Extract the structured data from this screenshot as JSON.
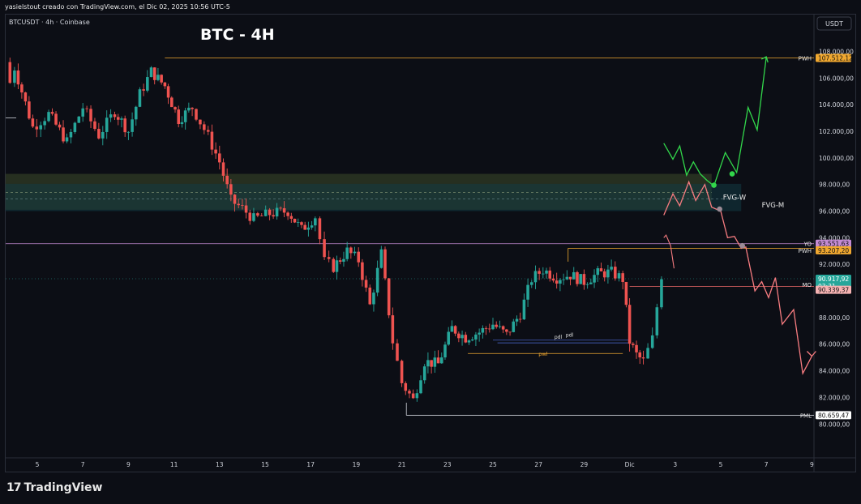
{
  "header": {
    "attribution": "yasielstout creado con TradingView.com, el Dic 02, 2025 10:56 UTC-5",
    "symbol": "BTCUSDT · 4h · Coinbase",
    "title": "BTC - 4H",
    "currency": "USDT"
  },
  "footer": {
    "brand_logo": "17",
    "brand_text": "TradingView"
  },
  "colors": {
    "background": "#0c0e15",
    "up": "#26a69a",
    "down": "#ef5350",
    "projection_up": "#32d74b",
    "projection_down": "#f77c80",
    "pwh": "#f0a830",
    "yo": "#c48bd4",
    "zone": "#2d4a3a"
  },
  "chart_data": {
    "type": "candlestick",
    "ylim": [
      79000,
      109500
    ],
    "y_ticks": [
      "108.000,00",
      "106.000,00",
      "104.000,00",
      "102.000,00",
      "100.000,00",
      "98.000,00",
      "96.000,00",
      "94.000,00",
      "92.000,00",
      "90.000,00",
      "88.000,00",
      "86.000,00",
      "84.000,00",
      "82.000,00",
      "80.000,00"
    ],
    "y_tick_values": [
      108000,
      106000,
      104000,
      102000,
      100000,
      98000,
      96000,
      94000,
      92000,
      90000,
      88000,
      86000,
      84000,
      82000,
      80000
    ],
    "x_ticks": [
      "5",
      "7",
      "9",
      "11",
      "13",
      "15",
      "17",
      "19",
      "21",
      "23",
      "25",
      "27",
      "29",
      "Dic",
      "3",
      "5",
      "7",
      "9"
    ],
    "x_tick_days": [
      5,
      7,
      9,
      11,
      13,
      15,
      17,
      19,
      21,
      23,
      25,
      27,
      29,
      31,
      33,
      35,
      37,
      39
    ],
    "x_range_days": [
      3.6,
      39.6
    ],
    "price_path": {
      "days": [
        3.6,
        4.0,
        4.8,
        5.5,
        6.3,
        7.0,
        7.7,
        8.4,
        9.0,
        9.5,
        10.0,
        10.6,
        11.2,
        11.8,
        12.5,
        13.0,
        13.5,
        14.0,
        14.5,
        15.2,
        16.0,
        16.6,
        17.2,
        17.6,
        18.0,
        18.6,
        19.1,
        19.6,
        20.1,
        20.6,
        21.0,
        21.5,
        22.0,
        22.6,
        23.2,
        23.8,
        24.4,
        25.0,
        25.6,
        26.2,
        26.7,
        27.2,
        27.8,
        28.4,
        29.0,
        29.6,
        30.2,
        30.7,
        31.0,
        31.3,
        31.6,
        32.0,
        32.4
      ],
      "prices": [
        104500,
        106800,
        102300,
        103300,
        101200,
        103800,
        101700,
        103500,
        102000,
        104800,
        106500,
        105400,
        102900,
        103800,
        101600,
        99700,
        96800,
        96200,
        95400,
        95800,
        96000,
        94600,
        95600,
        92200,
        91800,
        93000,
        92300,
        88900,
        92800,
        86200,
        83100,
        81800,
        84700,
        84500,
        87200,
        86500,
        86900,
        87500,
        86700,
        88300,
        90900,
        91600,
        91000,
        91200,
        90700,
        91300,
        91400,
        90900,
        86200,
        85200,
        84700,
        86400,
        91200
      ],
      "open": 107200
    },
    "levels": [
      {
        "name": "PWH",
        "price": 107512.12,
        "label": "107.512,12",
        "text": "PWH"
      },
      {
        "name": "YO",
        "price": 93551.63,
        "label": "93.551,63",
        "text": "YO"
      },
      {
        "name": "PWH2",
        "price": 93207.2,
        "label": "93.207,20",
        "text": "PWH"
      },
      {
        "name": "current",
        "price": 90917.92,
        "label": "90.917,92",
        "countdown": "03:31"
      },
      {
        "name": "MO",
        "price": 90339.37,
        "label": "90.339,37",
        "text": "MO"
      },
      {
        "name": "PML",
        "price": 80659.47,
        "label": "80.659,47",
        "text": "PML"
      }
    ],
    "zone_labels": [
      "FVG-W",
      "FVG-M"
    ],
    "minor_labels": [
      "pdl",
      "pdl",
      "pwl"
    ],
    "zones": [
      {
        "name": "fvg-w",
        "top": 98800,
        "bottom": 96100,
        "start_day": 3.6,
        "end_day": 34.6
      },
      {
        "name": "fvg-m",
        "top": 98050,
        "bottom": 96000,
        "start_day": 3.6,
        "end_day": 35.9
      }
    ],
    "bullish_projection": {
      "days": [
        32.5,
        32.9,
        33.2,
        33.5,
        33.8,
        34.1,
        34.4,
        34.7,
        35.2,
        35.7,
        36.2,
        36.6,
        37.0
      ],
      "prices": [
        101100,
        99900,
        100900,
        98700,
        99700,
        98800,
        98300,
        97900,
        100400,
        98900,
        103800,
        102100,
        107600
      ]
    },
    "bearish_projection": {
      "days": [
        32.5,
        32.9,
        33.2,
        33.6,
        33.9,
        34.3,
        34.6,
        35.0,
        35.3,
        35.6,
        35.9,
        36.1,
        36.5,
        36.8,
        37.1,
        37.4,
        37.7,
        38.2,
        38.6,
        39.0
      ],
      "prices": [
        95700,
        97300,
        96400,
        98200,
        96800,
        98000,
        96300,
        96000,
        94000,
        94100,
        93200,
        93300,
        90000,
        90700,
        89500,
        91000,
        87500,
        88600,
        83800,
        85100
      ]
    }
  }
}
